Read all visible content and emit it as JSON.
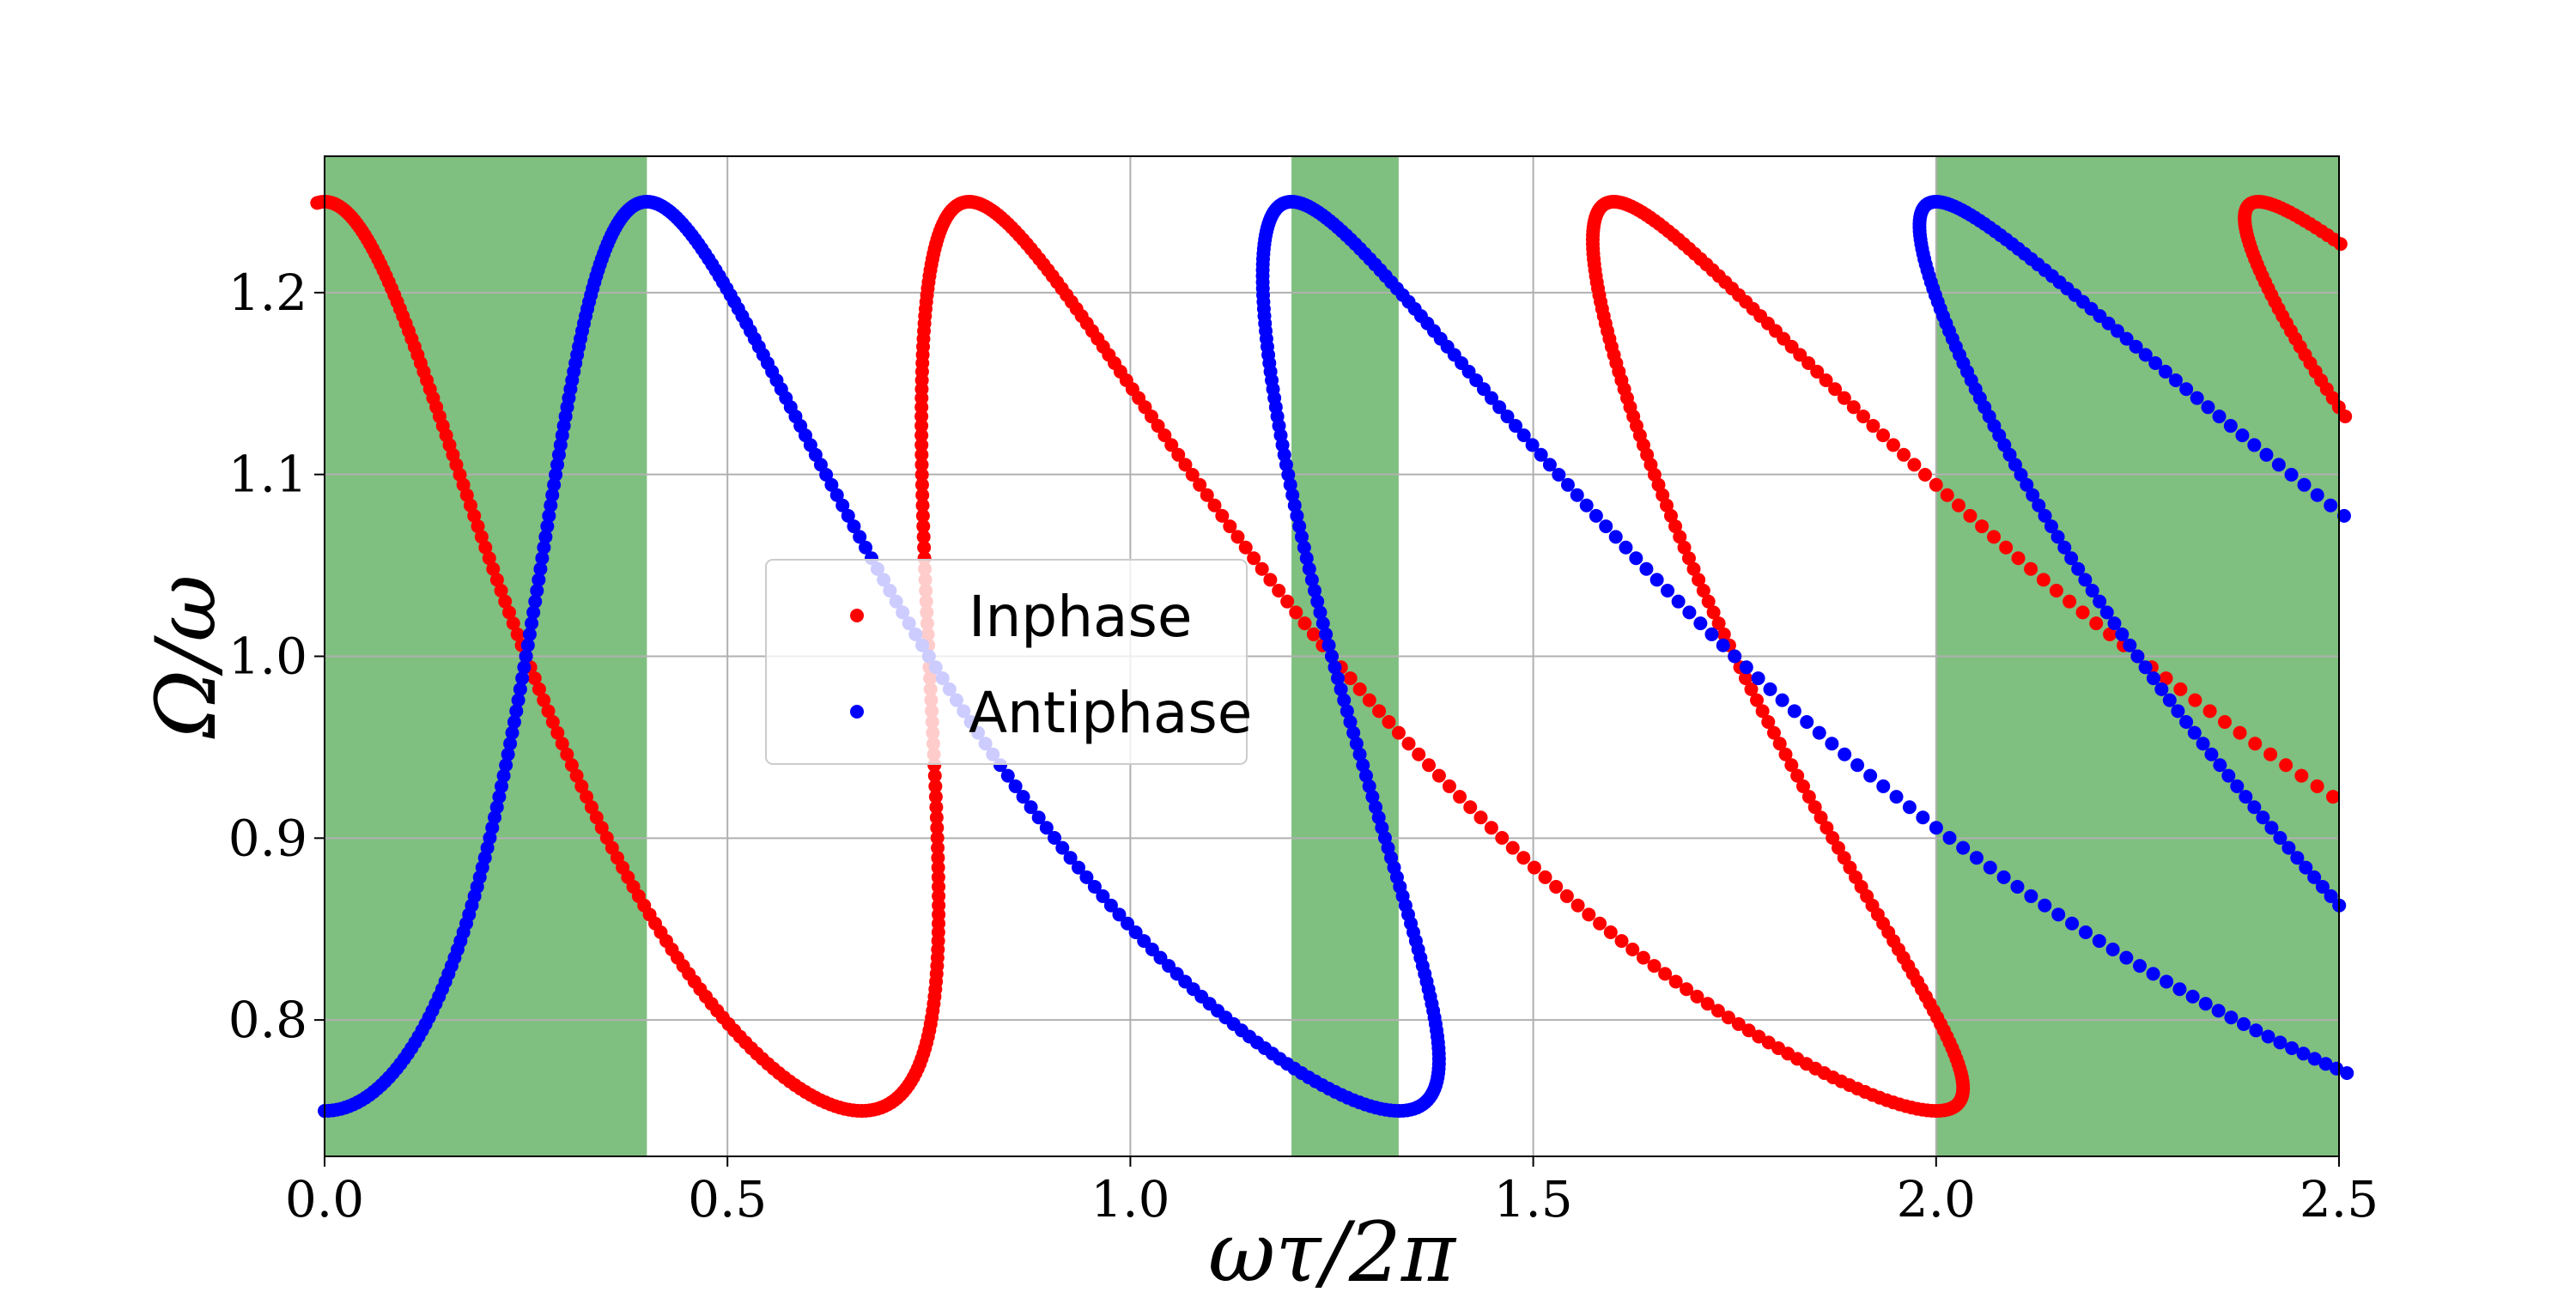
{
  "chart_data": {
    "type": "scatter",
    "xlabel": "ωτ/2π",
    "ylabel": "Ω/ω",
    "xlim": [
      0.0,
      2.5
    ],
    "ylim": [
      0.725,
      1.275
    ],
    "x_ticks": [
      0.0,
      0.5,
      1.0,
      1.5,
      2.0,
      2.5
    ],
    "x_tick_labels": [
      "0.0",
      "0.5",
      "1.0",
      "1.5",
      "2.0",
      "2.5"
    ],
    "y_ticks": [
      0.8,
      0.9,
      1.0,
      1.1,
      1.2
    ],
    "y_tick_labels": [
      "0.8",
      "0.9",
      "1.0",
      "1.1",
      "1.2"
    ],
    "grid": true,
    "legend_position": "center-left",
    "shaded_regions": [
      {
        "x_start": 0.0,
        "x_end": 0.4,
        "color": "#7fbf7f"
      },
      {
        "x_start": 1.2,
        "x_end": 1.333,
        "color": "#7fbf7f"
      },
      {
        "x_start": 2.0,
        "x_end": 2.5,
        "color": "#7fbf7f"
      }
    ],
    "series": [
      {
        "name": "Inphase",
        "color": "#ff0000",
        "curve": "x = n*(1/ψ) + (φ/2π)/ψ, where ψ = Ω/ω ranges 0.75–1.25, φ from 0 to 2π",
        "branches": [
          0,
          1,
          2,
          3
        ]
      },
      {
        "name": "Antiphase",
        "color": "#0000ff",
        "curve": "x = (n + 1/2)*(1/ψ) + (φ/2π)/ψ, where ψ = Ω/ω ranges 0.75–1.25, φ from 0 to 2π",
        "branches": [
          0,
          1,
          2,
          3
        ]
      }
    ],
    "legend": [
      {
        "label": "Inphase",
        "color": "#ff0000"
      },
      {
        "label": "Antiphase",
        "color": "#0000ff"
      }
    ]
  }
}
